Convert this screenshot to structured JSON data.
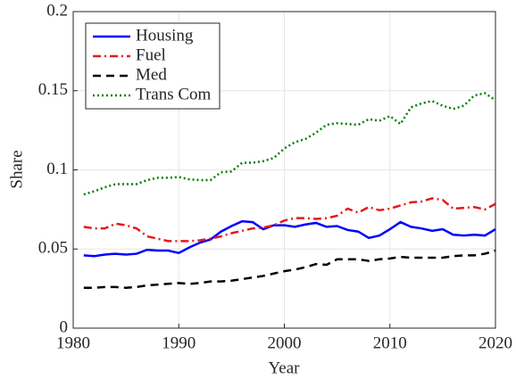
{
  "chart_data": {
    "type": "line",
    "x_label": "Year",
    "y_label": "Share",
    "x": [
      1981,
      1982,
      1983,
      1984,
      1985,
      1986,
      1987,
      1988,
      1989,
      1990,
      1991,
      1992,
      1993,
      1994,
      1995,
      1996,
      1997,
      1998,
      1999,
      2000,
      2001,
      2002,
      2003,
      2004,
      2005,
      2006,
      2007,
      2008,
      2009,
      2010,
      2011,
      2012,
      2013,
      2014,
      2015,
      2016,
      2017,
      2018,
      2019,
      2020
    ],
    "series": [
      {
        "name": "Housing",
        "color": "#0000ff",
        "style": "solid",
        "values": [
          0.046,
          0.0455,
          0.0465,
          0.047,
          0.0465,
          0.047,
          0.0495,
          0.049,
          0.049,
          0.0475,
          0.051,
          0.054,
          0.056,
          0.061,
          0.0645,
          0.0675,
          0.067,
          0.0625,
          0.065,
          0.065,
          0.064,
          0.0655,
          0.0665,
          0.064,
          0.0645,
          0.062,
          0.061,
          0.057,
          0.0585,
          0.0625,
          0.067,
          0.064,
          0.063,
          0.0615,
          0.0625,
          0.059,
          0.0585,
          0.059,
          0.0585,
          0.0625
        ]
      },
      {
        "name": "Fuel",
        "color": "#e41a1c",
        "style": "dashdot",
        "values": [
          0.064,
          0.063,
          0.063,
          0.066,
          0.065,
          0.063,
          0.058,
          0.0565,
          0.055,
          0.055,
          0.055,
          0.0555,
          0.0565,
          0.058,
          0.06,
          0.0615,
          0.063,
          0.0635,
          0.065,
          0.068,
          0.0695,
          0.0695,
          0.069,
          0.0695,
          0.071,
          0.0755,
          0.073,
          0.0765,
          0.0745,
          0.0755,
          0.0775,
          0.0795,
          0.08,
          0.082,
          0.081,
          0.0755,
          0.076,
          0.0765,
          0.075,
          0.0785
        ]
      },
      {
        "name": "Med",
        "color": "#000000",
        "style": "dashed",
        "values": [
          0.0255,
          0.0255,
          0.026,
          0.026,
          0.0255,
          0.026,
          0.027,
          0.0275,
          0.028,
          0.0285,
          0.028,
          0.0285,
          0.0295,
          0.0295,
          0.03,
          0.031,
          0.032,
          0.033,
          0.0345,
          0.036,
          0.037,
          0.0385,
          0.0405,
          0.04,
          0.0435,
          0.0435,
          0.0435,
          0.0425,
          0.0435,
          0.044,
          0.045,
          0.0445,
          0.0445,
          0.0445,
          0.0445,
          0.0455,
          0.046,
          0.046,
          0.047,
          0.049
        ]
      },
      {
        "name": "Trans Com",
        "color": "#008000",
        "style": "dotted",
        "values": [
          0.0845,
          0.0865,
          0.089,
          0.091,
          0.091,
          0.091,
          0.0935,
          0.095,
          0.095,
          0.0955,
          0.094,
          0.0935,
          0.0935,
          0.0985,
          0.099,
          0.1045,
          0.1045,
          0.1055,
          0.1075,
          0.1135,
          0.1175,
          0.1195,
          0.1235,
          0.1285,
          0.1295,
          0.129,
          0.1285,
          0.132,
          0.131,
          0.134,
          0.129,
          0.1395,
          0.142,
          0.1435,
          0.1405,
          0.1385,
          0.1405,
          0.147,
          0.1485,
          0.144
        ]
      }
    ],
    "xlim": [
      1980,
      2020
    ],
    "xticks": [
      1980,
      1990,
      2000,
      2010,
      2020
    ],
    "ylim": [
      0,
      0.2
    ],
    "yticks": [
      0,
      0.05,
      0.1,
      0.15,
      0.2
    ],
    "grid": true,
    "legend": "upper left"
  }
}
